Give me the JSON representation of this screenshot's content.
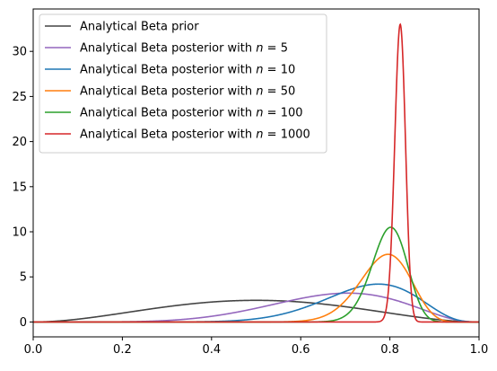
{
  "chart_data": {
    "type": "line",
    "title": "",
    "xlabel": "",
    "ylabel": "",
    "xlim": [
      0,
      1
    ],
    "ylim": [
      -1.65,
      34.7
    ],
    "xticks": [
      0.0,
      0.2,
      0.4,
      0.6,
      0.8,
      1.0
    ],
    "xtick_labels": [
      "0.0",
      "0.2",
      "0.4",
      "0.6",
      "0.8",
      "1.0"
    ],
    "yticks": [
      0,
      5,
      10,
      15,
      20,
      25,
      30
    ],
    "ytick_labels": [
      "0",
      "5",
      "10",
      "15",
      "20",
      "25",
      "30"
    ],
    "grid": false,
    "legend_position": "upper-left",
    "series": [
      {
        "name": "Analytical Beta prior",
        "name_base": "Analytical Beta prior",
        "name_n": "",
        "color": "#444444",
        "alpha": 3,
        "beta": 3,
        "peak_x": 0.5,
        "peak_y": 2.4
      },
      {
        "name": "Analytical Beta posterior with n = 5",
        "name_base": "Analytical Beta posterior with ",
        "name_n": "5",
        "color": "#9467bd",
        "alpha": 7,
        "beta": 3.5,
        "peak_x": 0.7,
        "peak_y": 3.2
      },
      {
        "name": "Analytical Beta posterior with n = 10",
        "name_base": "Analytical Beta posterior with ",
        "name_n": "10",
        "color": "#1f77b4",
        "alpha": 13,
        "beta": 4.5,
        "peak_x": 0.78,
        "peak_y": 4.2
      },
      {
        "name": "Analytical Beta posterior with n = 50",
        "name_base": "Analytical Beta posterior with ",
        "name_n": "50",
        "color": "#ff7f0e",
        "alpha": 40,
        "beta": 11,
        "peak_x": 0.79,
        "peak_y": 7.5
      },
      {
        "name": "Analytical Beta posterior with n = 100",
        "name_base": "Analytical Beta posterior with ",
        "name_n": "100",
        "color": "#2ca02c",
        "alpha": 82,
        "beta": 21,
        "peak_x": 0.8,
        "peak_y": 10.5
      },
      {
        "name": "Analytical Beta posterior with n = 1000",
        "name_base": "Analytical Beta posterior with ",
        "name_n": "1000",
        "color": "#d62728",
        "alpha": 825,
        "beta": 178,
        "peak_x": 0.82,
        "peak_y": 33.0
      }
    ]
  }
}
